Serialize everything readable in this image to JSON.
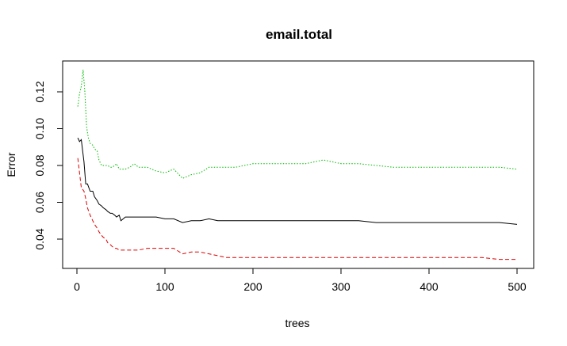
{
  "chart_data": {
    "type": "line",
    "title": "email.total",
    "xlabel": "trees",
    "ylabel": "Error",
    "xlim": [
      0,
      500
    ],
    "ylim": [
      0.026,
      0.133
    ],
    "xticks": [
      0,
      100,
      200,
      300,
      400,
      500
    ],
    "xtick_labels": [
      "0",
      "100",
      "200",
      "300",
      "400",
      "500"
    ],
    "yticks": [
      0.04,
      0.06,
      0.08,
      0.1,
      0.12
    ],
    "ytick_labels": [
      "0.04",
      "0.06",
      "0.08",
      "0.10",
      "0.12"
    ],
    "grid": false,
    "legend": "none",
    "series": [
      {
        "color": "#000000",
        "linestyle": "solid",
        "x": [
          1,
          3,
          5,
          8,
          10,
          12,
          15,
          18,
          20,
          23,
          25,
          28,
          30,
          33,
          35,
          38,
          40,
          43,
          45,
          48,
          50,
          55,
          60,
          65,
          70,
          80,
          90,
          100,
          110,
          120,
          130,
          140,
          150,
          160,
          170,
          180,
          190,
          200,
          220,
          240,
          260,
          280,
          300,
          320,
          340,
          360,
          380,
          400,
          420,
          440,
          460,
          480,
          500
        ],
        "y": [
          0.095,
          0.093,
          0.094,
          0.082,
          0.07,
          0.07,
          0.066,
          0.066,
          0.063,
          0.061,
          0.059,
          0.058,
          0.057,
          0.056,
          0.055,
          0.054,
          0.054,
          0.053,
          0.052,
          0.053,
          0.05,
          0.052,
          0.052,
          0.052,
          0.052,
          0.052,
          0.052,
          0.051,
          0.051,
          0.049,
          0.05,
          0.05,
          0.051,
          0.05,
          0.05,
          0.05,
          0.05,
          0.05,
          0.05,
          0.05,
          0.05,
          0.05,
          0.05,
          0.05,
          0.049,
          0.049,
          0.049,
          0.049,
          0.049,
          0.049,
          0.049,
          0.049,
          0.048
        ]
      },
      {
        "color": "#dd0000",
        "linestyle": "dashed",
        "x": [
          1,
          3,
          5,
          8,
          10,
          12,
          15,
          18,
          20,
          23,
          25,
          28,
          30,
          33,
          35,
          38,
          40,
          43,
          45,
          48,
          50,
          55,
          60,
          65,
          70,
          80,
          90,
          100,
          110,
          120,
          130,
          140,
          150,
          160,
          170,
          180,
          190,
          200,
          220,
          240,
          260,
          280,
          300,
          320,
          340,
          360,
          380,
          400,
          420,
          440,
          460,
          480,
          500
        ],
        "y": [
          0.084,
          0.076,
          0.068,
          0.066,
          0.062,
          0.057,
          0.053,
          0.05,
          0.048,
          0.046,
          0.044,
          0.042,
          0.041,
          0.04,
          0.038,
          0.037,
          0.036,
          0.035,
          0.035,
          0.034,
          0.034,
          0.034,
          0.034,
          0.034,
          0.034,
          0.035,
          0.035,
          0.035,
          0.035,
          0.032,
          0.033,
          0.033,
          0.032,
          0.031,
          0.03,
          0.03,
          0.03,
          0.03,
          0.03,
          0.03,
          0.03,
          0.03,
          0.03,
          0.03,
          0.03,
          0.03,
          0.03,
          0.03,
          0.03,
          0.03,
          0.03,
          0.029,
          0.029
        ]
      },
      {
        "color": "#00bb00",
        "linestyle": "dotted",
        "x": [
          1,
          3,
          5,
          7,
          9,
          11,
          13,
          15,
          18,
          20,
          23,
          25,
          28,
          30,
          33,
          35,
          38,
          40,
          43,
          45,
          48,
          50,
          55,
          60,
          65,
          70,
          80,
          90,
          100,
          110,
          120,
          130,
          140,
          150,
          160,
          170,
          180,
          190,
          200,
          220,
          240,
          260,
          280,
          300,
          320,
          340,
          360,
          380,
          400,
          420,
          440,
          460,
          480,
          500
        ],
        "y": [
          0.112,
          0.119,
          0.123,
          0.132,
          0.12,
          0.101,
          0.095,
          0.092,
          0.091,
          0.089,
          0.088,
          0.083,
          0.08,
          0.08,
          0.08,
          0.08,
          0.079,
          0.079,
          0.08,
          0.081,
          0.078,
          0.078,
          0.078,
          0.079,
          0.081,
          0.079,
          0.079,
          0.077,
          0.076,
          0.078,
          0.073,
          0.075,
          0.076,
          0.079,
          0.079,
          0.079,
          0.079,
          0.08,
          0.081,
          0.081,
          0.081,
          0.081,
          0.083,
          0.081,
          0.081,
          0.08,
          0.079,
          0.079,
          0.079,
          0.079,
          0.079,
          0.079,
          0.079,
          0.078
        ]
      }
    ]
  }
}
